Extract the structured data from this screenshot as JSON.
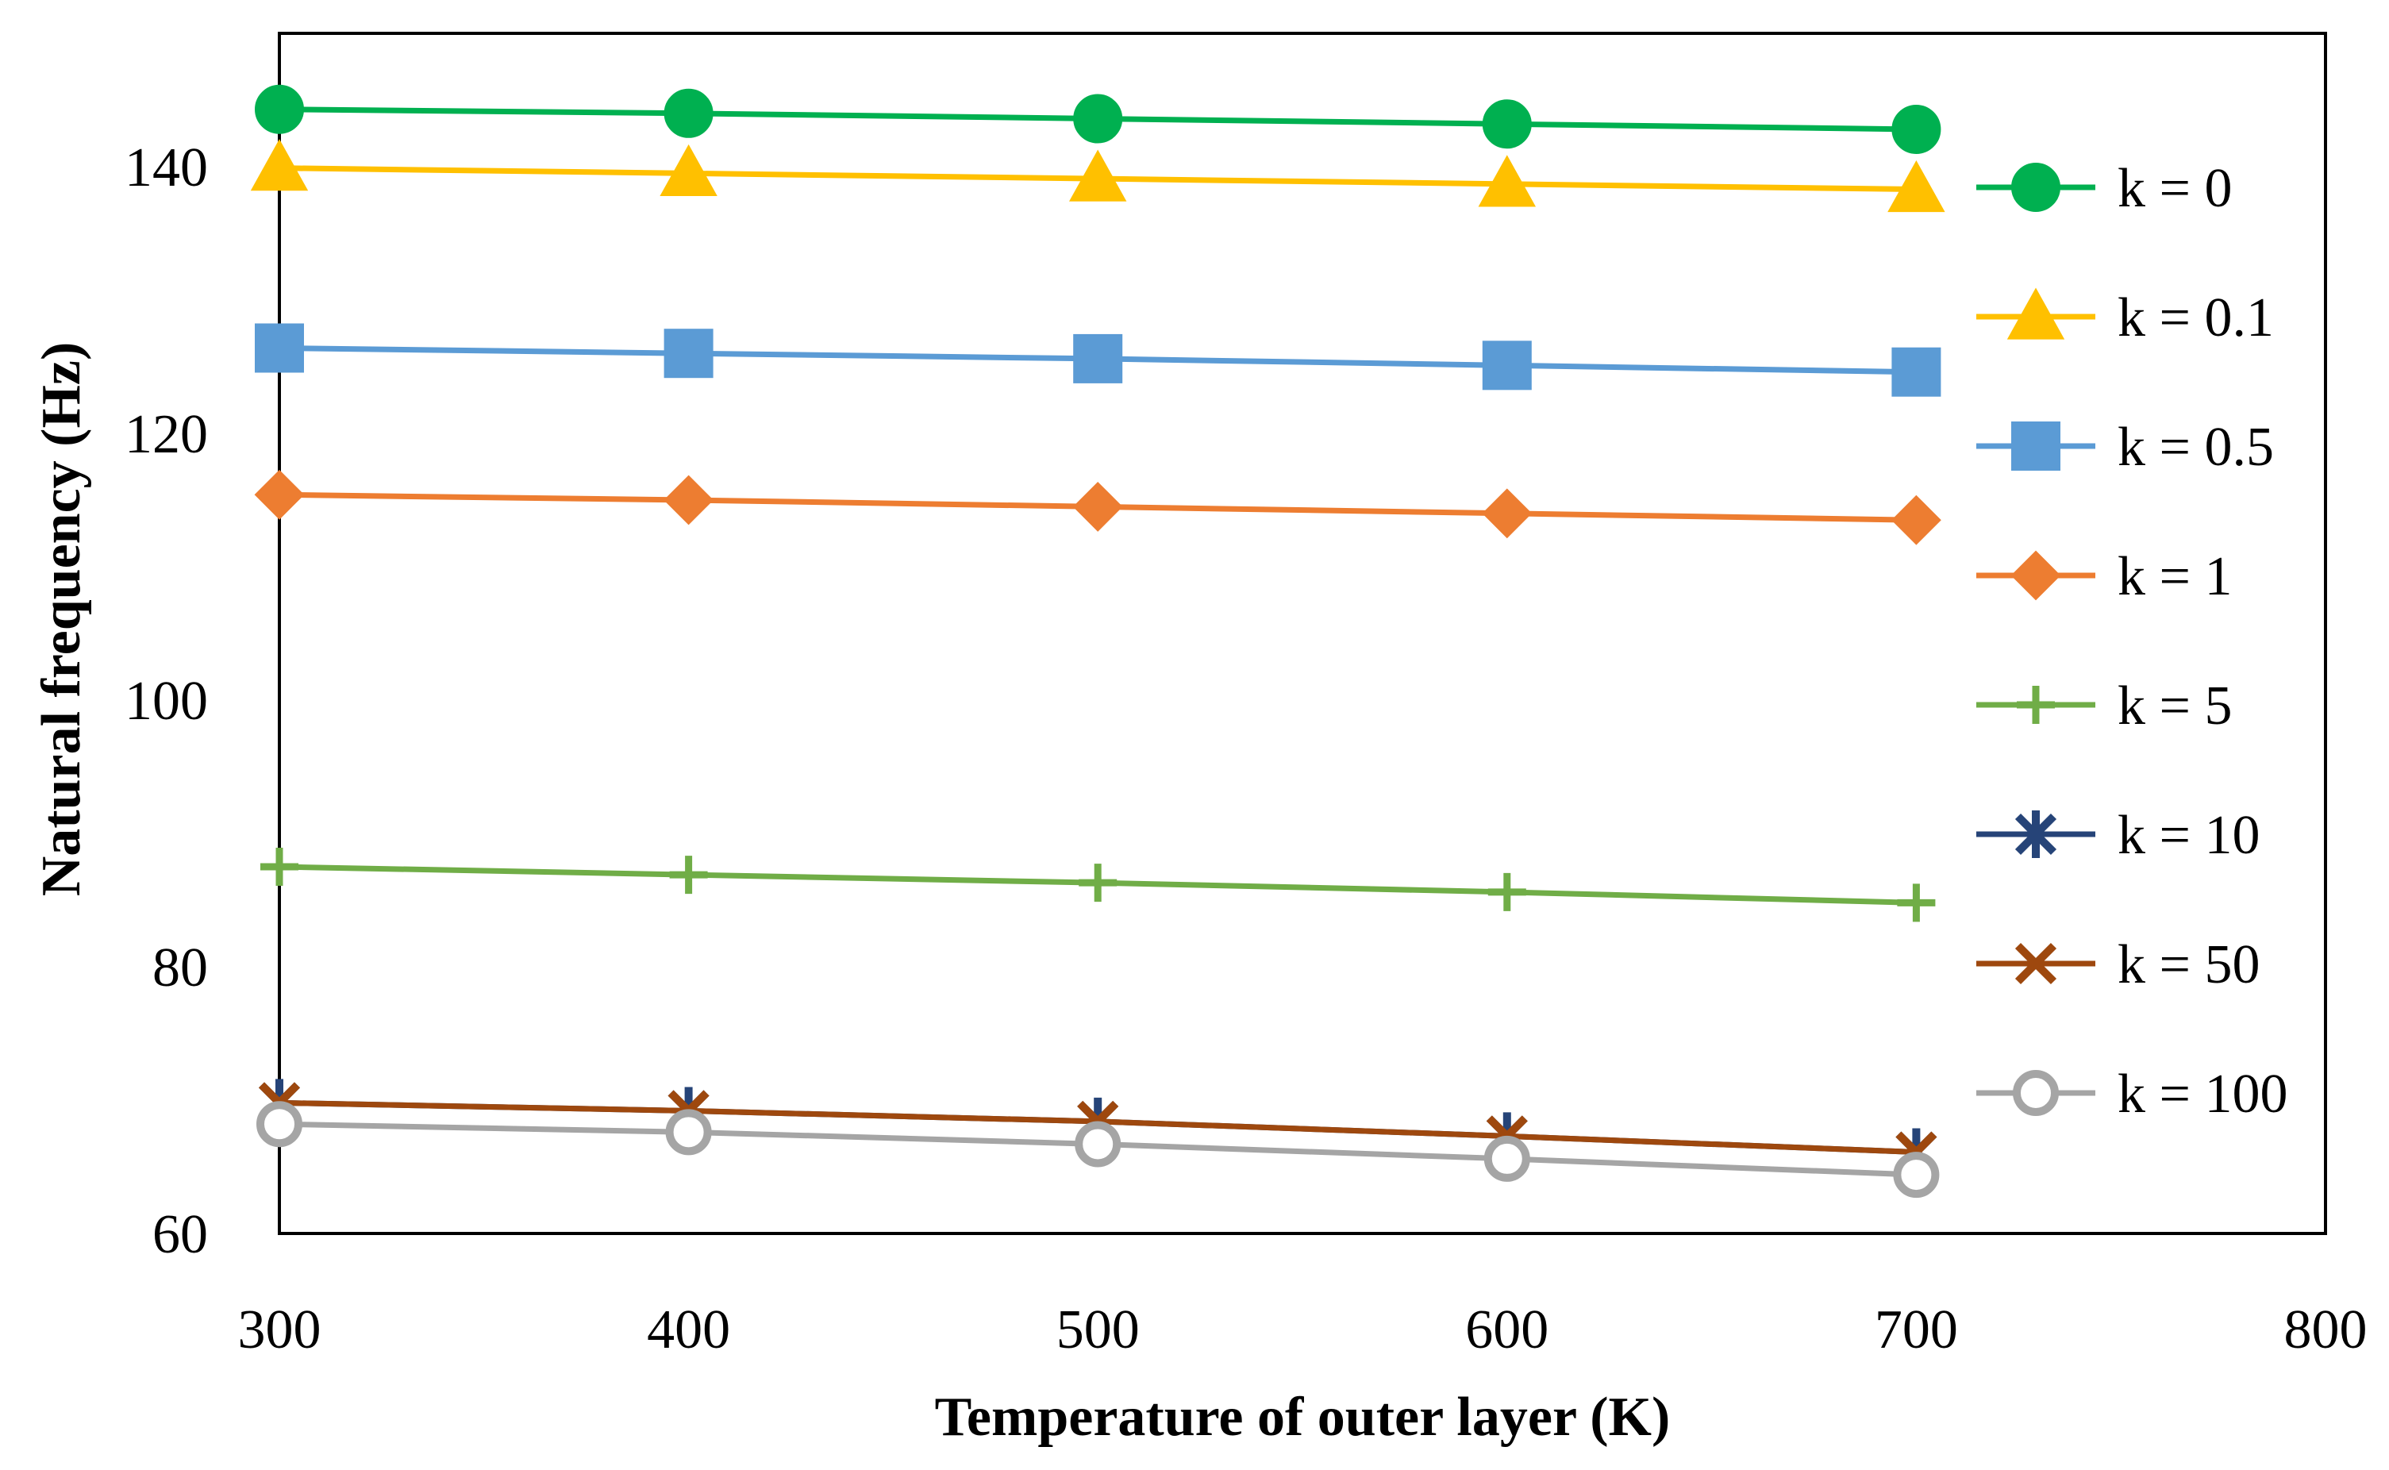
{
  "chart_data": {
    "type": "line",
    "title": "",
    "xlabel": "Temperature of outer layer (K)",
    "ylabel": "Natural frequency (Hz)",
    "xlim": [
      300,
      800
    ],
    "ylim": [
      60,
      150
    ],
    "xticks": [
      300,
      400,
      500,
      600,
      700,
      800
    ],
    "yticks": [
      60,
      80,
      100,
      120,
      140
    ],
    "grid": false,
    "legend_position": "right",
    "x": [
      300,
      400,
      500,
      600,
      700
    ],
    "series": [
      {
        "name": "k = 0",
        "color": "#00b050",
        "marker": "circle",
        "values": [
          144.3,
          144.0,
          143.6,
          143.2,
          142.8
        ]
      },
      {
        "name": "k = 0.1",
        "color": "#ffc000",
        "marker": "triangle",
        "values": [
          139.9,
          139.5,
          139.1,
          138.7,
          138.3
        ]
      },
      {
        "name": "k = 0.5",
        "color": "#5b9bd5",
        "marker": "square",
        "values": [
          126.4,
          126.0,
          125.6,
          125.1,
          124.6
        ]
      },
      {
        "name": "k = 1",
        "color": "#ed7d31",
        "marker": "diamond",
        "values": [
          115.4,
          115.0,
          114.5,
          114.0,
          113.5
        ]
      },
      {
        "name": "k = 5",
        "color": "#70ad47",
        "marker": "plus",
        "values": [
          87.5,
          86.9,
          86.3,
          85.6,
          84.8
        ]
      },
      {
        "name": "k = 10",
        "color": "#264478",
        "marker": "star",
        "values": [
          69.8,
          69.2,
          68.4,
          67.3,
          66.1
        ]
      },
      {
        "name": "k = 50",
        "color": "#9e480e",
        "marker": "x",
        "values": [
          69.8,
          69.2,
          68.4,
          67.3,
          66.1
        ]
      },
      {
        "name": "k = 100",
        "color": "#a5a5a5",
        "marker": "circle-open",
        "values": [
          68.2,
          67.6,
          66.7,
          65.6,
          64.4
        ]
      }
    ]
  }
}
